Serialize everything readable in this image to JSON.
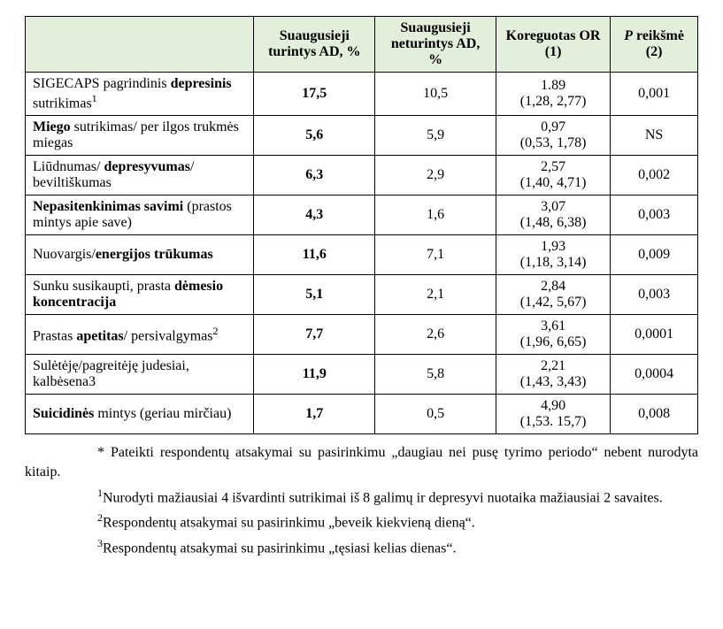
{
  "table": {
    "headers": {
      "label": "",
      "with_ad": "Suaugusieji turintys AD, %",
      "without_ad": "Suaugusieji neturintys AD, %",
      "or": "Koreguotas OR (1)",
      "p_html": "<span class=\"b\"><i>P</i> reikšmė (2)</span>"
    },
    "rows": [
      {
        "label_html": "SIGECAPS pagrindinis <span class=\"b\">depresinis</span> sutrikimas<span class=\"sup\">1</span>",
        "with_ad": "17,5",
        "without_ad": "10,5",
        "or_html": "1.89<br>(1,28, 2,77)",
        "p": "0,001"
      },
      {
        "label_html": "<span class=\"b\">Miego</span> sutrikimas/ per ilgos trukmės miegas",
        "with_ad": "5,6",
        "without_ad": "5,9",
        "or_html": "0,97<br>(0,53, 1,78)",
        "p": "NS"
      },
      {
        "label_html": "Liūdnumas/ <span class=\"b\">depresyvumas</span>/ beviltiškumas",
        "with_ad": "6,3",
        "without_ad": "2,9",
        "or_html": "2,57<br>(1,40, 4,71)",
        "p": "0,002"
      },
      {
        "label_html": "<span class=\"b\">Nepasitenkinimas savimi</span> (prastos mintys apie save)",
        "with_ad": "4,3",
        "without_ad": "1,6",
        "or_html": "3,07<br>(1,48, 6,38)",
        "p": "0,003"
      },
      {
        "label_html": "Nuovargis/<span class=\"b\">energijos trūkumas</span>",
        "with_ad": "11,6",
        "without_ad": "7,1",
        "or_html": "1,93<br>(1,18, 3,14)",
        "p": "0,009"
      },
      {
        "label_html": "Sunku susikaupti, prasta <span class=\"b\">dėmesio koncentracija</span>",
        "with_ad": "5,1",
        "without_ad": "2,1",
        "or_html": "2,84<br>(1,42, 5,67)",
        "p": "0,003"
      },
      {
        "label_html": "Prastas <span class=\"b\">apetitas</span>/ persivalgymas<span class=\"sup\">2</span>",
        "with_ad": "7,7",
        "without_ad": "2,6",
        "or_html": "3,61<br>(1,96, 6,65)",
        "p": "0,0001"
      },
      {
        "label_html": "Sulėtėję/pagreitėję judesiai, kalbėsena3",
        "with_ad": "11,9",
        "without_ad": "5,8",
        "or_html": "2,21<br>(1,43, 3,43)",
        "p": "0,0004"
      },
      {
        "label_html": "<span class=\"b\">Suicidinės</span> mintys (geriau mirčiau)",
        "with_ad": "1,7",
        "without_ad": "0,5",
        "or_html": "4,90<br>(1,53. 15,7)",
        "p": "0,008"
      }
    ]
  },
  "footnotes": {
    "f1": "* Pateikti respondentų atsakymai su pasirinkimu „daugiau nei pusę tyrimo periodo“ nebent nurodyta kitaip.",
    "f2_html": "<span class=\"sup\">1</span>Nurodyti mažiausiai 4 išvardinti sutrikimai iš 8 galimų ir depresyvi nuotaika mažiausiai 2 savaites.",
    "f3_html": "<span class=\"sup\">2</span>Respondentų atsakymai su pasirinkimu „beveik kiekvieną dieną“.",
    "f4_html": "<span class=\"sup\">3</span>Respondentų atsakymai su pasirinkimu „tęsiasi kelias dienas“."
  }
}
